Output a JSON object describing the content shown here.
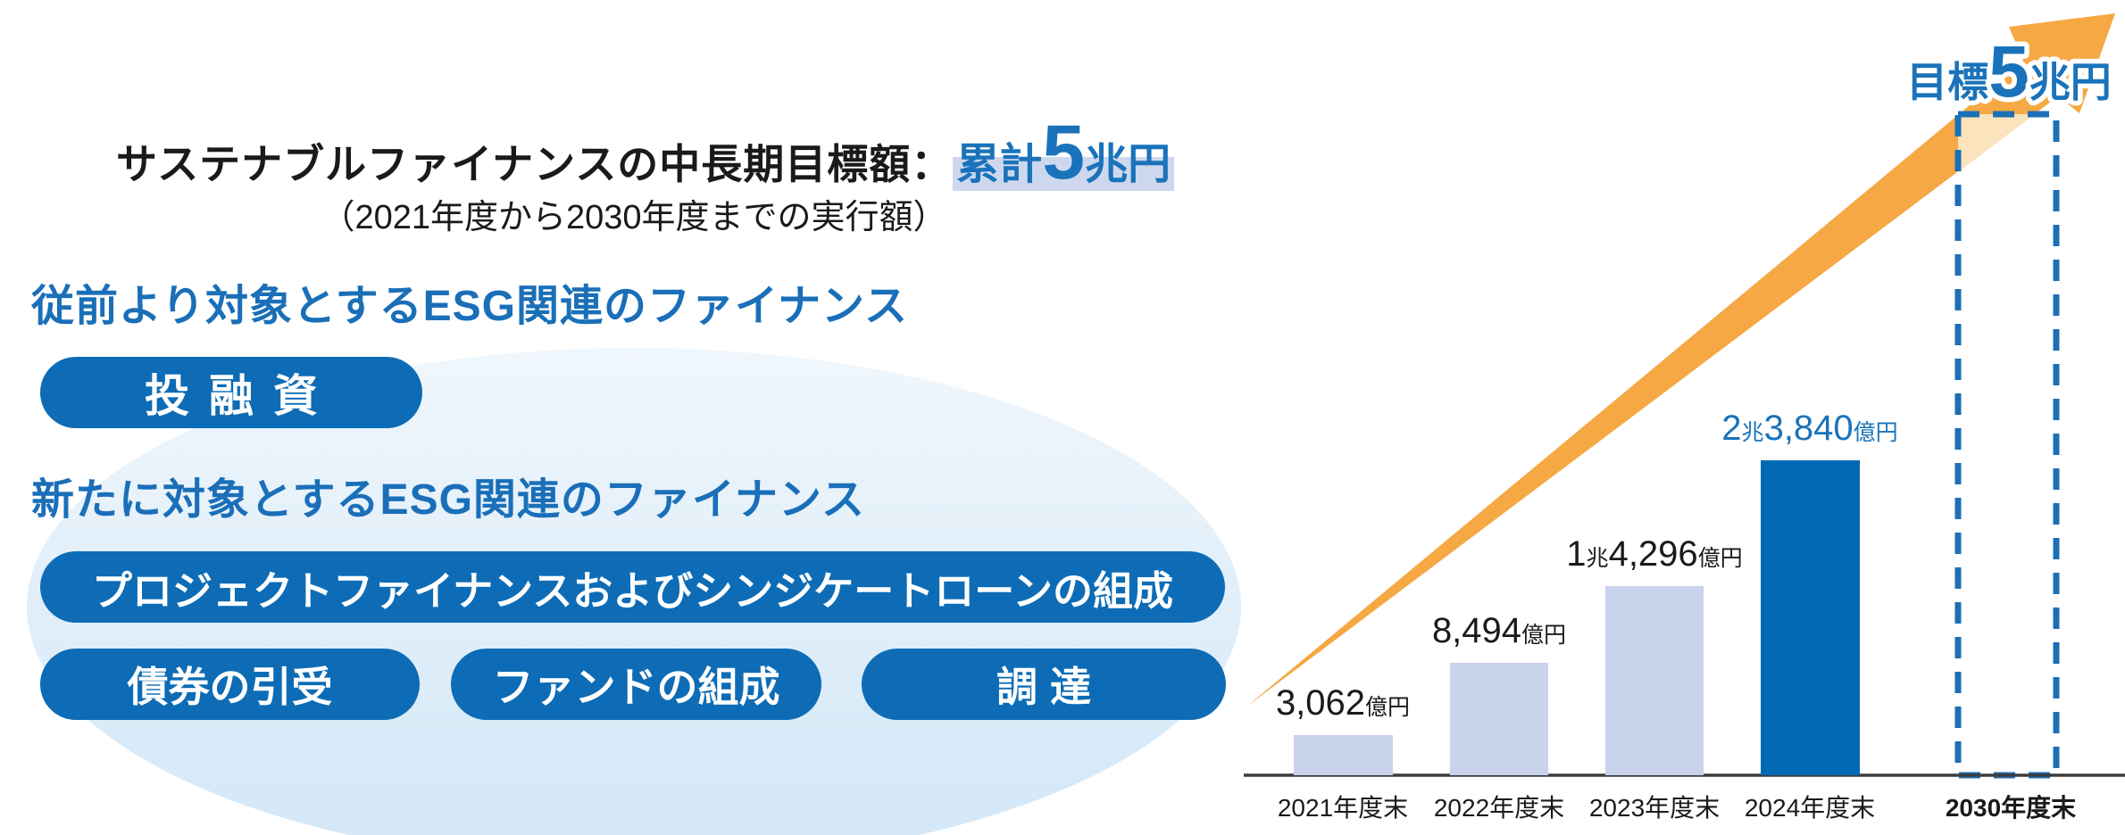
{
  "colors": {
    "accent_blue": "#0d6cb5",
    "bar_light": "#c9d3ec",
    "bar_dark": "#0069b6",
    "arrow_orange": "#f5a843",
    "arrow_pale": "#fae3bd",
    "dashed_blue": "#1c6fb6",
    "text_blue": "#1a73ba",
    "highlight": "#cdd8ee",
    "axis_color": "#3c3c3c",
    "text_black": "#1a1a1a"
  },
  "header": {
    "title_black": "サステナブルファイナンスの中長期目標額：",
    "goal_prefix": "累計",
    "goal_number": "5",
    "goal_unit": "兆円",
    "subtitle": "（2021年度から2030年度までの実行額）"
  },
  "sections": [
    {
      "heading": "従前より対象とするESG関連のファイナンス",
      "pills": [
        "投融資"
      ]
    },
    {
      "heading": "新たに対象とするESG関連のファイナンス",
      "pills": [
        "プロジェクトファイナンスおよびシンジケートローンの組成",
        "債券の引受",
        "ファンドの組成",
        "調達"
      ]
    }
  ],
  "chart_data": {
    "type": "bar",
    "categories": [
      "2021年度末",
      "2022年度末",
      "2023年度末",
      "2024年度末",
      "2030年度末"
    ],
    "values": [
      3062,
      8494,
      14296,
      23840
    ],
    "unit": "億円",
    "ylim": [
      0,
      50000
    ],
    "target_value": 50000,
    "grid": false,
    "legend": false,
    "bar_value_labels": [
      "3,062億円",
      "8,494億円",
      "1兆4,296億円",
      "2兆3,840億円"
    ],
    "annotations": [
      "目標5兆円"
    ],
    "bars": [
      {
        "category": "2021年度末",
        "value": 3062,
        "label": {
          "v1": "3,062",
          "u1": "億円",
          "v2": "",
          "u2": ""
        }
      },
      {
        "category": "2022年度末",
        "value": 8494,
        "label": {
          "v1": "8,494",
          "u1": "億円",
          "v2": "",
          "u2": ""
        }
      },
      {
        "category": "2023年度末",
        "value": 14296,
        "label": {
          "v1": "1",
          "u1": "兆",
          "v2": "4,296",
          "u2": "億円"
        }
      },
      {
        "category": "2024年度末",
        "value": 23840,
        "label": {
          "v1": "2",
          "u1": "兆",
          "v2": "3,840",
          "u2": "億円"
        }
      }
    ],
    "target": {
      "category": "2030年度末",
      "value": 50000,
      "label_prefix": "目標",
      "label_number": "5",
      "label_unit": "兆円"
    }
  }
}
